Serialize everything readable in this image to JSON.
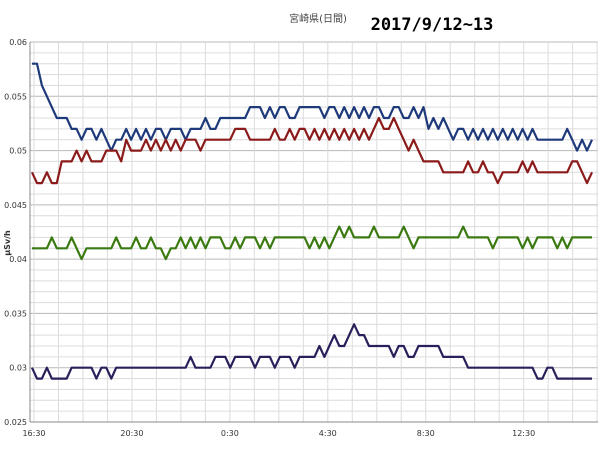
{
  "chart_data": {
    "type": "line",
    "title": "宮崎県(日間)",
    "subtitle": "2017/9/12~13",
    "ylabel": "μSv/h",
    "xlabel": "",
    "ylim": [
      0.025,
      0.06
    ],
    "yticks": [
      "0.025",
      "0.03",
      "0.035",
      "0.04",
      "0.045",
      "0.05",
      "0.055",
      "0.06"
    ],
    "x_labels": [
      "16:30",
      "20:30",
      "0:30",
      "4:30",
      "8:30",
      "12:30"
    ],
    "grid": true,
    "legend": "none",
    "series": [
      {
        "color": "#1f3a7a",
        "values": [
          0.058,
          0.058,
          0.056,
          0.055,
          0.054,
          0.053,
          0.053,
          0.053,
          0.052,
          0.052,
          0.051,
          0.052,
          0.052,
          0.051,
          0.052,
          0.051,
          0.05,
          0.051,
          0.051,
          0.052,
          0.051,
          0.052,
          0.051,
          0.052,
          0.051,
          0.052,
          0.052,
          0.051,
          0.052,
          0.052,
          0.052,
          0.051,
          0.052,
          0.052,
          0.052,
          0.053,
          0.052,
          0.052,
          0.053,
          0.053,
          0.053,
          0.053,
          0.053,
          0.053,
          0.054,
          0.054,
          0.054,
          0.053,
          0.054,
          0.053,
          0.054,
          0.054,
          0.053,
          0.053,
          0.054,
          0.054,
          0.054,
          0.054,
          0.054,
          0.053,
          0.054,
          0.054,
          0.053,
          0.054,
          0.053,
          0.054,
          0.053,
          0.054,
          0.053,
          0.054,
          0.054,
          0.053,
          0.053,
          0.054,
          0.054,
          0.053,
          0.053,
          0.054,
          0.053,
          0.054,
          0.052,
          0.053,
          0.052,
          0.053,
          0.052,
          0.051,
          0.052,
          0.052,
          0.051,
          0.052,
          0.051,
          0.052,
          0.051,
          0.052,
          0.051,
          0.052,
          0.051,
          0.052,
          0.051,
          0.052,
          0.051,
          0.052,
          0.051,
          0.051,
          0.051,
          0.051,
          0.051,
          0.051,
          0.052,
          0.051,
          0.05,
          0.051,
          0.05,
          0.051
        ]
      },
      {
        "color": "#8b1a1a",
        "values": [
          0.048,
          0.047,
          0.047,
          0.048,
          0.047,
          0.047,
          0.049,
          0.049,
          0.049,
          0.05,
          0.049,
          0.05,
          0.049,
          0.049,
          0.049,
          0.05,
          0.05,
          0.05,
          0.049,
          0.051,
          0.05,
          0.05,
          0.05,
          0.051,
          0.05,
          0.051,
          0.05,
          0.051,
          0.05,
          0.051,
          0.05,
          0.051,
          0.051,
          0.051,
          0.05,
          0.051,
          0.051,
          0.051,
          0.051,
          0.051,
          0.051,
          0.052,
          0.052,
          0.052,
          0.051,
          0.051,
          0.051,
          0.051,
          0.051,
          0.052,
          0.051,
          0.051,
          0.052,
          0.051,
          0.052,
          0.052,
          0.051,
          0.052,
          0.051,
          0.052,
          0.051,
          0.052,
          0.051,
          0.052,
          0.051,
          0.052,
          0.051,
          0.052,
          0.051,
          0.052,
          0.053,
          0.052,
          0.052,
          0.053,
          0.052,
          0.051,
          0.05,
          0.051,
          0.05,
          0.049,
          0.049,
          0.049,
          0.049,
          0.048,
          0.048,
          0.048,
          0.048,
          0.048,
          0.049,
          0.048,
          0.048,
          0.049,
          0.048,
          0.048,
          0.047,
          0.048,
          0.048,
          0.048,
          0.048,
          0.049,
          0.048,
          0.049,
          0.048,
          0.048,
          0.048,
          0.048,
          0.048,
          0.048,
          0.048,
          0.049,
          0.049,
          0.048,
          0.047,
          0.048
        ]
      },
      {
        "color": "#3a7a10",
        "values": [
          0.041,
          0.041,
          0.041,
          0.041,
          0.042,
          0.041,
          0.041,
          0.041,
          0.042,
          0.041,
          0.04,
          0.041,
          0.041,
          0.041,
          0.041,
          0.041,
          0.041,
          0.042,
          0.041,
          0.041,
          0.041,
          0.042,
          0.041,
          0.041,
          0.042,
          0.041,
          0.041,
          0.04,
          0.041,
          0.041,
          0.042,
          0.041,
          0.042,
          0.041,
          0.042,
          0.041,
          0.042,
          0.042,
          0.042,
          0.041,
          0.041,
          0.042,
          0.041,
          0.042,
          0.042,
          0.042,
          0.041,
          0.042,
          0.041,
          0.042,
          0.042,
          0.042,
          0.042,
          0.042,
          0.042,
          0.042,
          0.041,
          0.042,
          0.041,
          0.042,
          0.041,
          0.042,
          0.043,
          0.042,
          0.043,
          0.042,
          0.042,
          0.042,
          0.042,
          0.043,
          0.042,
          0.042,
          0.042,
          0.042,
          0.042,
          0.043,
          0.042,
          0.041,
          0.042,
          0.042,
          0.042,
          0.042,
          0.042,
          0.042,
          0.042,
          0.042,
          0.042,
          0.043,
          0.042,
          0.042,
          0.042,
          0.042,
          0.042,
          0.041,
          0.042,
          0.042,
          0.042,
          0.042,
          0.042,
          0.041,
          0.042,
          0.041,
          0.042,
          0.042,
          0.042,
          0.042,
          0.041,
          0.042,
          0.041,
          0.042,
          0.042,
          0.042,
          0.042,
          0.042
        ]
      },
      {
        "color": "#2a1f5a",
        "values": [
          0.03,
          0.029,
          0.029,
          0.03,
          0.029,
          0.029,
          0.029,
          0.029,
          0.03,
          0.03,
          0.03,
          0.03,
          0.03,
          0.029,
          0.03,
          0.03,
          0.029,
          0.03,
          0.03,
          0.03,
          0.03,
          0.03,
          0.03,
          0.03,
          0.03,
          0.03,
          0.03,
          0.03,
          0.03,
          0.03,
          0.03,
          0.03,
          0.031,
          0.03,
          0.03,
          0.03,
          0.03,
          0.031,
          0.031,
          0.031,
          0.03,
          0.031,
          0.031,
          0.031,
          0.031,
          0.03,
          0.031,
          0.031,
          0.031,
          0.03,
          0.031,
          0.031,
          0.031,
          0.03,
          0.031,
          0.031,
          0.031,
          0.031,
          0.032,
          0.031,
          0.032,
          0.033,
          0.032,
          0.032,
          0.033,
          0.034,
          0.033,
          0.033,
          0.032,
          0.032,
          0.032,
          0.032,
          0.032,
          0.031,
          0.032,
          0.032,
          0.031,
          0.031,
          0.032,
          0.032,
          0.032,
          0.032,
          0.032,
          0.031,
          0.031,
          0.031,
          0.031,
          0.031,
          0.03,
          0.03,
          0.03,
          0.03,
          0.03,
          0.03,
          0.03,
          0.03,
          0.03,
          0.03,
          0.03,
          0.03,
          0.03,
          0.03,
          0.029,
          0.029,
          0.03,
          0.03,
          0.029,
          0.029,
          0.029,
          0.029,
          0.029,
          0.029,
          0.029,
          0.029
        ]
      }
    ]
  }
}
